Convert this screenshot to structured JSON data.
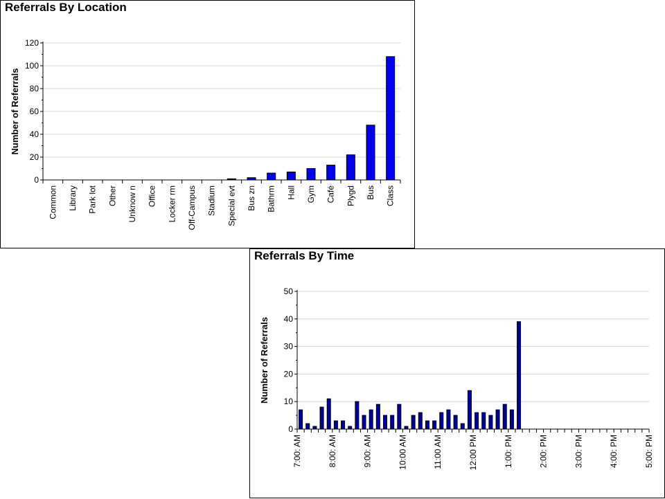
{
  "chart_data": [
    {
      "type": "bar",
      "title": "Referrals By Location",
      "xlabel": "",
      "ylabel": "Number of Referrals",
      "ylim": [
        0,
        120
      ],
      "yticks": [
        "0",
        "20",
        "40",
        "60",
        "80",
        "100",
        "120"
      ],
      "grid": true,
      "bar_color": "#0000ee",
      "categories": [
        "Common",
        "Library",
        "Park lot",
        "Other",
        "Unknow n",
        "Office",
        "Locker rm",
        "Off-Campus",
        "Stadium",
        "Special evt",
        "Bus zn",
        "Bathrm",
        "Hall",
        "Gym",
        "Café",
        "Plygd",
        "Bus",
        "Class"
      ],
      "values": [
        0,
        0,
        0,
        0,
        0,
        0,
        0,
        0,
        0,
        1,
        2,
        6,
        7,
        10,
        13,
        22,
        48,
        108
      ]
    },
    {
      "type": "bar",
      "title": "Referrals By Time",
      "xlabel": "",
      "ylabel": "Number of Referrals",
      "ylim": [
        0,
        50
      ],
      "yticks": [
        "0",
        "10",
        "20",
        "30",
        "40",
        "50"
      ],
      "grid": true,
      "bar_color": "#0000aa",
      "tick_labels": [
        "7:00: AM",
        "8:00: AM",
        "9:00: AM",
        "10:00 AM",
        "11:00 AM",
        "12:00 PM",
        "1:00: PM",
        "2:00: PM",
        "3:00: PM",
        "4:00: PM",
        "5:00: PM"
      ],
      "values": [
        7,
        2,
        1,
        8,
        11,
        3,
        3,
        1,
        10,
        5,
        7,
        9,
        5,
        5,
        9,
        1,
        5,
        6,
        3,
        3,
        6,
        7,
        5,
        2,
        14,
        6,
        6,
        5,
        7,
        9,
        7,
        39,
        0,
        0,
        0,
        0,
        0,
        0,
        0,
        0,
        0,
        0,
        0,
        0,
        0,
        0,
        0,
        0,
        0,
        0
      ]
    }
  ]
}
